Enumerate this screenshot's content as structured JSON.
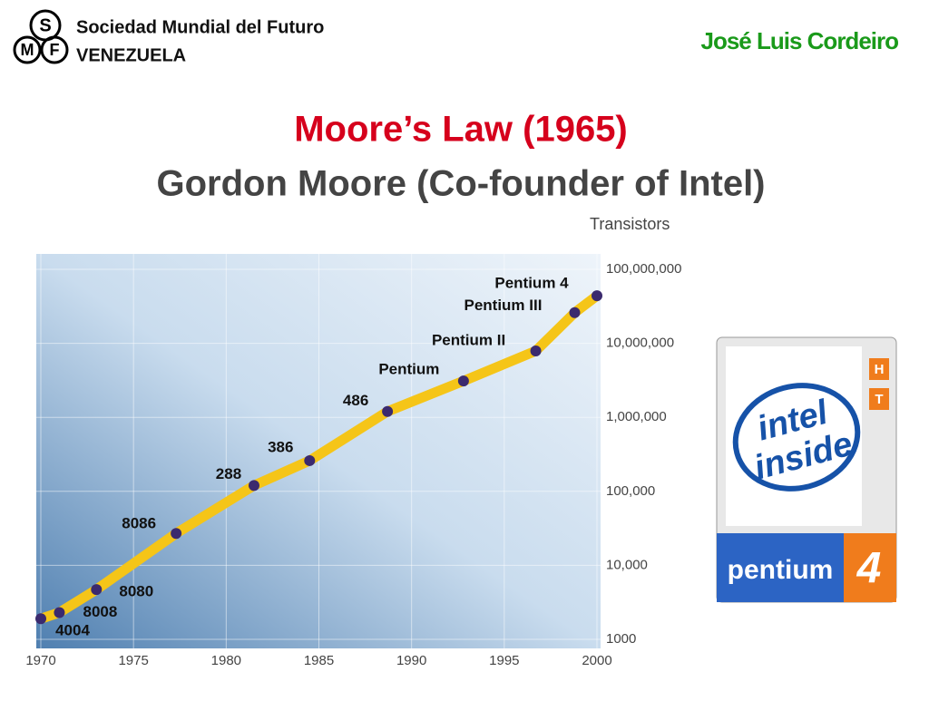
{
  "header": {
    "logo_letters": [
      "S",
      "M",
      "F"
    ],
    "organization": "Sociedad Mundial del Futuro",
    "country": "VENEZUELA",
    "author": "José Luis Cordeiro"
  },
  "title": "Moore’s Law (1965)",
  "subtitle": "Gordon Moore (Co-founder of Intel)",
  "logo": {
    "line1": "intel",
    "line2": "inside",
    "brand": "pentium",
    "version": "4",
    "badges": [
      "H",
      "T"
    ]
  },
  "chart_data": {
    "type": "line",
    "y_label": "Transistors",
    "x": [
      1970,
      1971,
      1973,
      1977.3,
      1981.5,
      1984.5,
      1988.7,
      1992.8,
      1996.7,
      1998.8,
      2000
    ],
    "point_labels": [
      "4004",
      "8008",
      "8080",
      "8086",
      "288",
      "386",
      "486",
      "Pentium",
      "Pentium II",
      "Pentium III",
      "Pentium 4"
    ],
    "series": [
      {
        "name": "Transistors",
        "color": "#f5c518",
        "marker_color": "#3b2a6e",
        "values": [
          1900,
          2300,
          4700,
          27000,
          120000,
          260000,
          1200000,
          3100000,
          7900000,
          26000000,
          44000000
        ]
      }
    ],
    "xlim": [
      1970,
      2000
    ],
    "xticks": [
      1970,
      1975,
      1980,
      1985,
      1990,
      1995,
      2000
    ],
    "ylim": [
      1000,
      100000000
    ],
    "log_y": true,
    "yticks": [
      1000,
      {
        "value": 10000,
        "label": "10,000"
      },
      {
        "value": 100000,
        "label": "100,000"
      },
      {
        "value": 1000000,
        "label": "1,000,000"
      },
      {
        "value": 10000000,
        "label": "10,000,000"
      },
      {
        "value": 100000000,
        "label": "100,000,000"
      }
    ],
    "grid": true
  }
}
